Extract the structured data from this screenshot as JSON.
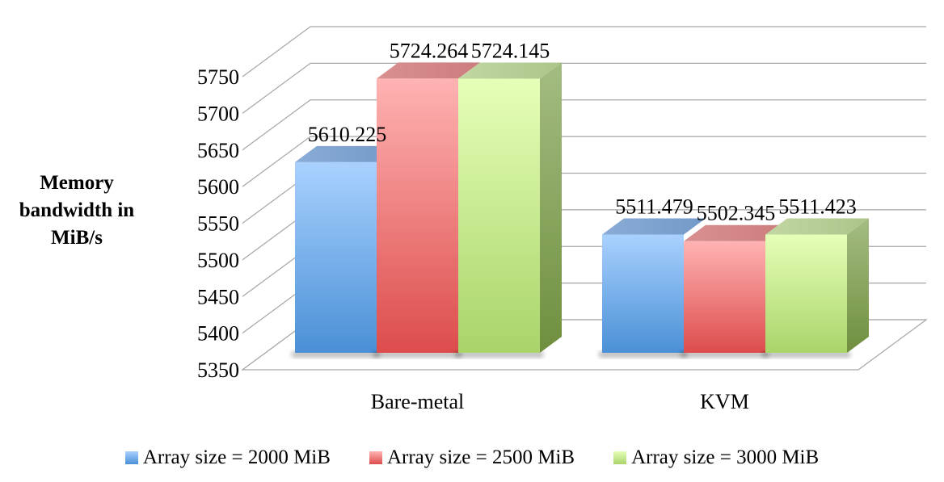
{
  "chart_data": {
    "type": "bar",
    "style": "3d-clustered-column",
    "ylabel": "Memory bandwidth in MiB/s",
    "categories": [
      "Bare-metal",
      "KVM"
    ],
    "series": [
      {
        "name": "Array size = 2000 MiB",
        "values": [
          5610.225,
          5511.479
        ],
        "labels": [
          "5610.225",
          "5511.479"
        ],
        "color": "#6fa6e6"
      },
      {
        "name": "Array size = 2500 MiB",
        "values": [
          5724.264,
          5502.345
        ],
        "labels": [
          "5724.264",
          "5502.345"
        ],
        "color": "#f08080"
      },
      {
        "name": "Array size = 3000 MiB",
        "values": [
          5724.145,
          5511.423
        ],
        "labels": [
          "5724.145",
          "5511.423"
        ],
        "color": "#c9ec8f"
      }
    ],
    "ylim": [
      5350,
      5750
    ],
    "yticks": [
      "5350",
      "5400",
      "5450",
      "5500",
      "5550",
      "5600",
      "5650",
      "5700",
      "5750"
    ],
    "grid": true,
    "legend_position": "bottom"
  }
}
